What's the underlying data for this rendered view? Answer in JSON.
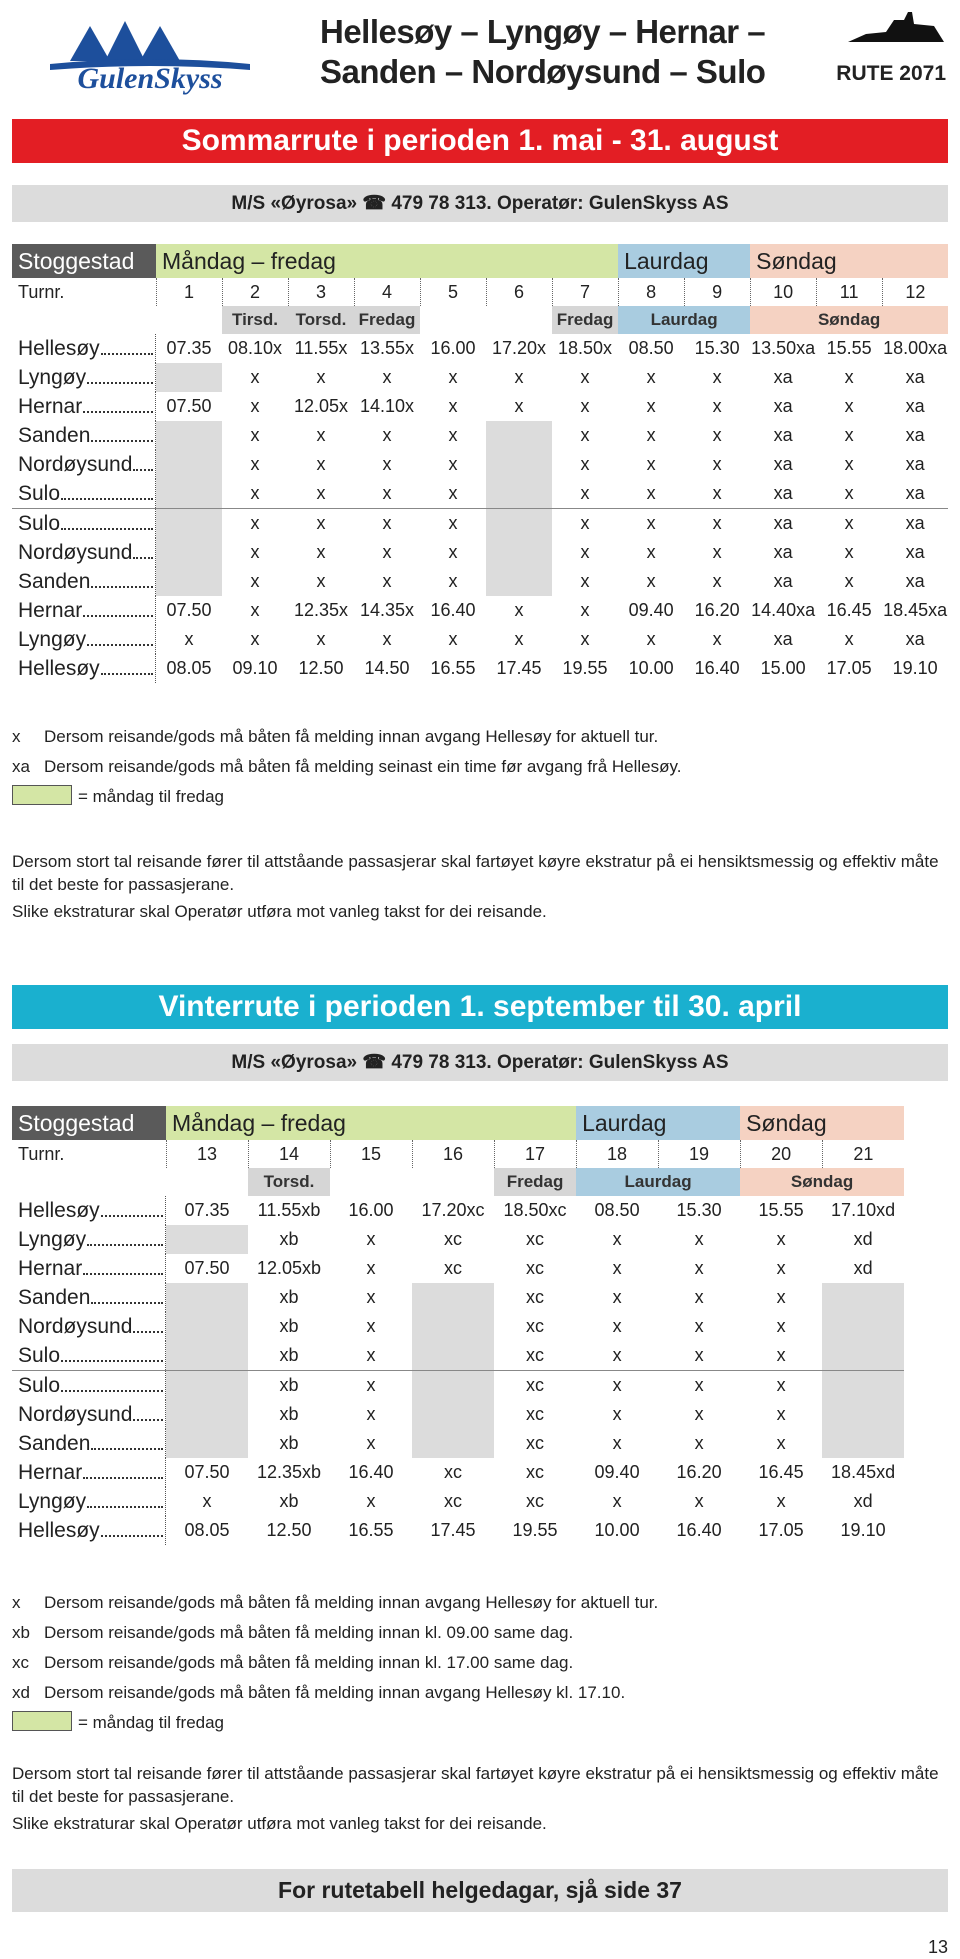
{
  "header": {
    "logo": "GulenSkyss",
    "title_lines": [
      "Hellesøy – Lyngøy – Hernar –",
      "Sanden – Nordøysund – Sulo"
    ],
    "route": "RUTE 2071"
  },
  "timetables": [
    {
      "banner": "Sommarrute i perioden 1. mai - 31. august",
      "vessel": "M/S «Øyrosa» ☎ 479 78 313. Operatør: GulenSkyss AS",
      "stop_label": "Stoggestad",
      "trip_label": "Turnr.",
      "groups": [
        {
          "name": "Måndag – fredag",
          "trips": [
            1,
            2,
            3,
            4,
            5,
            6,
            7
          ],
          "day_notes": [
            null,
            "Tirsd.",
            "Torsd.",
            "Fredag",
            null,
            null,
            "Fredag"
          ]
        },
        {
          "name": "Laurdag",
          "trips": [
            8,
            9
          ],
          "day_note": "Laurdag"
        },
        {
          "name": "Søndag",
          "trips": [
            10,
            11,
            12
          ],
          "day_note": "Søndag"
        }
      ],
      "legs": [
        [
          {
            "stop": "Hellesøy",
            "times": [
              "07.35",
              "08.10x",
              "11.55x",
              "13.55x",
              "16.00",
              "17.20x",
              "18.50x",
              "08.50",
              "15.30",
              "13.50xa",
              "15.55",
              "18.00xa"
            ]
          },
          {
            "stop": "Lyngøy",
            "times": [
              null,
              "x",
              "x",
              "x",
              "x",
              "x",
              "x",
              "x",
              "x",
              "xa",
              "x",
              "xa"
            ]
          },
          {
            "stop": "Hernar",
            "times": [
              "07.50",
              "x",
              "12.05x",
              "14.10x",
              "x",
              "x",
              "x",
              "x",
              "x",
              "xa",
              "x",
              "xa"
            ]
          },
          {
            "stop": "Sanden",
            "times": [
              null,
              "x",
              "x",
              "x",
              "x",
              null,
              "x",
              "x",
              "x",
              "xa",
              "x",
              "xa"
            ]
          },
          {
            "stop": "Nordøysund",
            "times": [
              null,
              "x",
              "x",
              "x",
              "x",
              null,
              "x",
              "x",
              "x",
              "xa",
              "x",
              "xa"
            ]
          },
          {
            "stop": "Sulo",
            "times": [
              null,
              "x",
              "x",
              "x",
              "x",
              null,
              "x",
              "x",
              "x",
              "xa",
              "x",
              "xa"
            ]
          }
        ],
        [
          {
            "stop": "Sulo",
            "times": [
              null,
              "x",
              "x",
              "x",
              "x",
              null,
              "x",
              "x",
              "x",
              "xa",
              "x",
              "xa"
            ]
          },
          {
            "stop": "Nordøysund",
            "times": [
              null,
              "x",
              "x",
              "x",
              "x",
              null,
              "x",
              "x",
              "x",
              "xa",
              "x",
              "xa"
            ]
          },
          {
            "stop": "Sanden",
            "times": [
              null,
              "x",
              "x",
              "x",
              "x",
              null,
              "x",
              "x",
              "x",
              "xa",
              "x",
              "xa"
            ]
          },
          {
            "stop": "Hernar",
            "times": [
              "07.50",
              "x",
              "12.35x",
              "14.35x",
              "16.40",
              "x",
              "x",
              "09.40",
              "16.20",
              "14.40xa",
              "16.45",
              "18.45xa"
            ]
          },
          {
            "stop": "Lyngøy",
            "times": [
              "x",
              "x",
              "x",
              "x",
              "x",
              "x",
              "x",
              "x",
              "x",
              "xa",
              "x",
              "xa"
            ]
          },
          {
            "stop": "Hellesøy",
            "times": [
              "08.05",
              "09.10",
              "12.50",
              "14.50",
              "16.55",
              "17.45",
              "19.55",
              "10.00",
              "16.40",
              "15.00",
              "17.05",
              "19.10"
            ]
          }
        ]
      ],
      "notes": [
        {
          "key": "x",
          "text": "Dersom reisande/gods må båten få melding innan avgang Hellesøy for aktuell tur."
        },
        {
          "key": "xa",
          "text": "Dersom reisande/gods må båten få melding seinast ein time før avgang frå Hellesøy."
        }
      ],
      "legend": "= måndag til fredag",
      "paragraphs": [
        "Dersom stort tal reisande fører til attståande passasjerar skal fartøyet køyre ekstratur på ei hensiktsmessig og effektiv måte til det beste for passasjerane.",
        "Slike ekstraturar skal Operatør utføra mot vanleg takst for dei reisande."
      ]
    },
    {
      "banner": "Vinterrute i perioden 1. september til 30. april",
      "vessel": "M/S «Øyrosa» ☎ 479 78 313. Operatør: GulenSkyss AS",
      "stop_label": "Stoggestad",
      "trip_label": "Turnr.",
      "groups": [
        {
          "name": "Måndag – fredag",
          "trips": [
            13,
            14,
            15,
            16,
            17
          ],
          "day_notes": [
            null,
            "Torsd.",
            null,
            null,
            "Fredag"
          ]
        },
        {
          "name": "Laurdag",
          "trips": [
            18,
            19
          ],
          "day_note": "Laurdag"
        },
        {
          "name": "Søndag",
          "trips": [
            20,
            21
          ],
          "day_note": "Søndag"
        }
      ],
      "legs": [
        [
          {
            "stop": "Hellesøy",
            "times": [
              "07.35",
              "11.55xb",
              "16.00",
              "17.20xc",
              "18.50xc",
              "08.50",
              "15.30",
              "15.55",
              "17.10xd"
            ]
          },
          {
            "stop": "Lyngøy",
            "times": [
              null,
              "xb",
              "x",
              "xc",
              "xc",
              "x",
              "x",
              "x",
              "xd"
            ]
          },
          {
            "stop": "Hernar",
            "times": [
              "07.50",
              "12.05xb",
              "x",
              "xc",
              "xc",
              "x",
              "x",
              "x",
              "xd"
            ]
          },
          {
            "stop": "Sanden",
            "times": [
              null,
              "xb",
              "x",
              null,
              "xc",
              "x",
              "x",
              "x",
              null
            ]
          },
          {
            "stop": "Nordøysund",
            "times": [
              null,
              "xb",
              "x",
              null,
              "xc",
              "x",
              "x",
              "x",
              null
            ]
          },
          {
            "stop": "Sulo",
            "times": [
              null,
              "xb",
              "x",
              null,
              "xc",
              "x",
              "x",
              "x",
              null
            ]
          }
        ],
        [
          {
            "stop": "Sulo",
            "times": [
              null,
              "xb",
              "x",
              null,
              "xc",
              "x",
              "x",
              "x",
              null
            ]
          },
          {
            "stop": "Nordøysund",
            "times": [
              null,
              "xb",
              "x",
              null,
              "xc",
              "x",
              "x",
              "x",
              null
            ]
          },
          {
            "stop": "Sanden",
            "times": [
              null,
              "xb",
              "x",
              null,
              "xc",
              "x",
              "x",
              "x",
              null
            ]
          },
          {
            "stop": "Hernar",
            "times": [
              "07.50",
              "12.35xb",
              "16.40",
              "xc",
              "xc",
              "09.40",
              "16.20",
              "16.45",
              "18.45xd"
            ]
          },
          {
            "stop": "Lyngøy",
            "times": [
              "x",
              "xb",
              "x",
              "xc",
              "xc",
              "x",
              "x",
              "x",
              "xd"
            ]
          },
          {
            "stop": "Hellesøy",
            "times": [
              "08.05",
              "12.50",
              "16.55",
              "17.45",
              "19.55",
              "10.00",
              "16.40",
              "17.05",
              "19.10"
            ]
          }
        ]
      ],
      "notes": [
        {
          "key": "x",
          "text": "Dersom reisande/gods må båten få melding innan avgang Hellesøy for aktuell tur."
        },
        {
          "key": "xb",
          "text": "Dersom reisande/gods må båten få melding innan kl. 09.00 same dag."
        },
        {
          "key": "xc",
          "text": "Dersom reisande/gods må båten få melding innan kl. 17.00 same dag."
        },
        {
          "key": "xd",
          "text": "Dersom reisande/gods må båten få melding innan avgang Hellesøy kl. 17.10."
        }
      ],
      "legend": "= måndag til fredag",
      "paragraphs": [
        "Dersom stort tal reisande fører til attståande passasjerar skal fartøyet køyre ekstratur på ei hensiktsmessig og effektiv måte til det beste for passasjerane.",
        "Slike ekstraturar skal Operatør utføra mot vanleg takst for dei reisande."
      ]
    }
  ],
  "footer": {
    "text": "For rutetabell helgedagar, sjå side 37",
    "page": 13
  }
}
